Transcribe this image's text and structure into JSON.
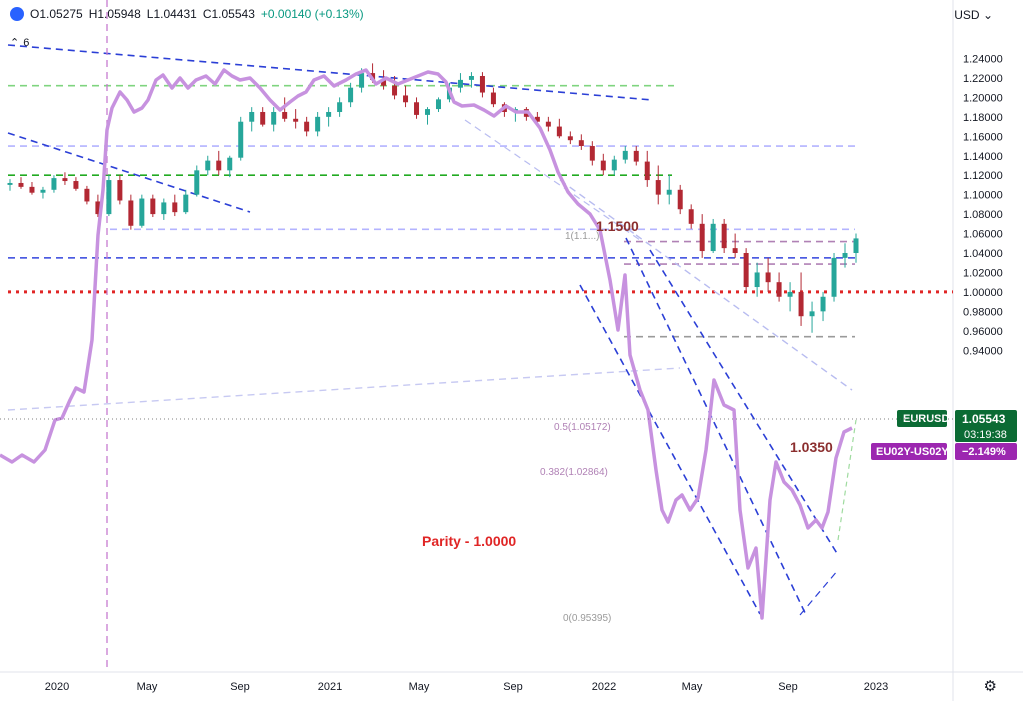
{
  "legend": {
    "open": "O1.05275",
    "high": "H1.05948",
    "low": "L1.04431",
    "close": "C1.05543",
    "change": "+0.00140 (+0.13%)"
  },
  "indicator_toggle": "6",
  "currency": "USD",
  "chart_data": {
    "type": "candlestick",
    "symbol": "EURUSD",
    "price_axis": {
      "ticks": [
        "1.24000",
        "1.22000",
        "1.20000",
        "1.18000",
        "1.16000",
        "1.14000",
        "1.12000",
        "1.10000",
        "1.08000",
        "1.06000",
        "1.04000",
        "1.02000",
        "1.00000",
        "0.98000",
        "0.96000",
        "0.94000"
      ],
      "range": [
        0.928,
        1.256
      ]
    },
    "time_axis": {
      "ticks": [
        "2020",
        "May",
        "Sep",
        "2021",
        "May",
        "Sep",
        "2022",
        "May",
        "Sep",
        "2023"
      ],
      "range": [
        "2019-11",
        "2023-01"
      ]
    },
    "series": [
      {
        "name": "EURUSD",
        "last_value": "1.05543",
        "countdown": "03:19:38",
        "color_up": "#26a69a",
        "color_down": "#b22833",
        "ohlc_approx": [
          [
            1.11,
            1.116,
            1.104,
            1.112
          ],
          [
            1.112,
            1.118,
            1.106,
            1.108
          ],
          [
            1.108,
            1.113,
            1.1,
            1.102
          ],
          [
            1.102,
            1.108,
            1.096,
            1.105
          ],
          [
            1.105,
            1.12,
            1.102,
            1.117
          ],
          [
            1.117,
            1.123,
            1.11,
            1.114
          ],
          [
            1.114,
            1.118,
            1.104,
            1.106
          ],
          [
            1.106,
            1.109,
            1.09,
            1.093
          ],
          [
            1.093,
            1.1,
            1.077,
            1.08
          ],
          [
            1.08,
            1.12,
            1.078,
            1.115
          ],
          [
            1.115,
            1.12,
            1.09,
            1.094
          ],
          [
            1.094,
            1.1,
            1.064,
            1.068
          ],
          [
            1.068,
            1.1,
            1.066,
            1.096
          ],
          [
            1.096,
            1.1,
            1.077,
            1.08
          ],
          [
            1.08,
            1.096,
            1.074,
            1.092
          ],
          [
            1.092,
            1.1,
            1.078,
            1.082
          ],
          [
            1.082,
            1.105,
            1.08,
            1.1
          ],
          [
            1.1,
            1.13,
            1.098,
            1.125
          ],
          [
            1.125,
            1.14,
            1.12,
            1.135
          ],
          [
            1.135,
            1.145,
            1.12,
            1.125
          ],
          [
            1.125,
            1.14,
            1.118,
            1.138
          ],
          [
            1.138,
            1.18,
            1.135,
            1.175
          ],
          [
            1.175,
            1.19,
            1.165,
            1.185
          ],
          [
            1.185,
            1.19,
            1.17,
            1.172
          ],
          [
            1.172,
            1.19,
            1.165,
            1.185
          ],
          [
            1.185,
            1.2,
            1.175,
            1.178
          ],
          [
            1.178,
            1.188,
            1.168,
            1.175
          ],
          [
            1.175,
            1.18,
            1.16,
            1.165
          ],
          [
            1.165,
            1.185,
            1.16,
            1.18
          ],
          [
            1.18,
            1.19,
            1.17,
            1.185
          ],
          [
            1.185,
            1.2,
            1.18,
            1.195
          ],
          [
            1.195,
            1.215,
            1.19,
            1.21
          ],
          [
            1.21,
            1.23,
            1.205,
            1.225
          ],
          [
            1.225,
            1.235,
            1.215,
            1.218
          ],
          [
            1.218,
            1.228,
            1.208,
            1.212
          ],
          [
            1.212,
            1.222,
            1.198,
            1.202
          ],
          [
            1.202,
            1.212,
            1.19,
            1.195
          ],
          [
            1.195,
            1.2,
            1.178,
            1.182
          ],
          [
            1.182,
            1.19,
            1.172,
            1.188
          ],
          [
            1.188,
            1.2,
            1.185,
            1.198
          ],
          [
            1.198,
            1.215,
            1.195,
            1.21
          ],
          [
            1.21,
            1.225,
            1.205,
            1.218
          ],
          [
            1.218,
            1.226,
            1.21,
            1.222
          ],
          [
            1.222,
            1.226,
            1.2,
            1.205
          ],
          [
            1.205,
            1.21,
            1.19,
            1.193
          ],
          [
            1.193,
            1.195,
            1.18,
            1.185
          ],
          [
            1.185,
            1.19,
            1.175,
            1.188
          ],
          [
            1.188,
            1.19,
            1.176,
            1.18
          ],
          [
            1.18,
            1.185,
            1.17,
            1.175
          ],
          [
            1.175,
            1.18,
            1.165,
            1.17
          ],
          [
            1.17,
            1.178,
            1.158,
            1.16
          ],
          [
            1.16,
            1.165,
            1.152,
            1.156
          ],
          [
            1.156,
            1.162,
            1.146,
            1.15
          ],
          [
            1.15,
            1.155,
            1.13,
            1.135
          ],
          [
            1.135,
            1.142,
            1.12,
            1.125
          ],
          [
            1.125,
            1.14,
            1.12,
            1.136
          ],
          [
            1.136,
            1.15,
            1.132,
            1.145
          ],
          [
            1.145,
            1.15,
            1.13,
            1.134
          ],
          [
            1.134,
            1.145,
            1.108,
            1.115
          ],
          [
            1.115,
            1.13,
            1.09,
            1.1
          ],
          [
            1.1,
            1.12,
            1.09,
            1.105
          ],
          [
            1.105,
            1.11,
            1.08,
            1.085
          ],
          [
            1.085,
            1.09,
            1.065,
            1.07
          ],
          [
            1.07,
            1.08,
            1.035,
            1.042
          ],
          [
            1.042,
            1.075,
            1.04,
            1.07
          ],
          [
            1.07,
            1.075,
            1.04,
            1.045
          ],
          [
            1.045,
            1.06,
            1.035,
            1.04
          ],
          [
            1.04,
            1.045,
            1.0,
            1.005
          ],
          [
            1.005,
            1.03,
            0.995,
            1.02
          ],
          [
            1.02,
            1.035,
            1.0,
            1.01
          ],
          [
            1.01,
            1.02,
            0.99,
            0.995
          ],
          [
            0.995,
            1.01,
            0.98,
            1.0
          ],
          [
            1.0,
            1.02,
            0.965,
            0.975
          ],
          [
            0.975,
            0.99,
            0.958,
            0.98
          ],
          [
            0.98,
            1.0,
            0.97,
            0.995
          ],
          [
            0.995,
            1.04,
            0.99,
            1.035
          ],
          [
            1.035,
            1.05,
            1.025,
            1.04
          ],
          [
            1.04,
            1.06,
            1.03,
            1.055
          ]
        ]
      },
      {
        "name": "EU02Y-US02Y",
        "last_value": "−2.149%",
        "color": "#c792df"
      }
    ],
    "annotations": [
      {
        "text": "1.1500",
        "color": "#8b2e2e"
      },
      {
        "text": "1.0350",
        "color": "#8b2e2e"
      },
      {
        "text": "Parity - 1.0000",
        "color": "#e02525"
      },
      {
        "text": "0.5(1.05172)",
        "color": "#b081b5"
      },
      {
        "text": "0.382(1.02864)",
        "color": "#b081b5"
      },
      {
        "text": "0(0.95395)",
        "color": "#9a9a9a"
      },
      {
        "text": "1(1.1...)",
        "color": "#9a9a9a"
      }
    ],
    "levels": [
      {
        "value": 1.15,
        "style": "dashed",
        "color": "#b3b3ff"
      },
      {
        "value": 1.12,
        "style": "dashed",
        "color": "#22aa22"
      },
      {
        "value": 1.212,
        "style": "dashed",
        "color": "#7fd47f"
      },
      {
        "value": 1.035,
        "style": "dashed",
        "color": "#3344dd"
      },
      {
        "value": 1.0,
        "style": "dotted",
        "color": "#e02525"
      },
      {
        "value": 1.0644,
        "style": "dashed",
        "color": "#b3b3ff"
      },
      {
        "value": 1.05172,
        "style": "dashed",
        "color": "#b081b5"
      },
      {
        "value": 1.02864,
        "style": "dashed",
        "color": "#b081b5"
      },
      {
        "value": 0.95395,
        "style": "dashed",
        "color": "#9a9a9a"
      }
    ],
    "grid": false
  }
}
